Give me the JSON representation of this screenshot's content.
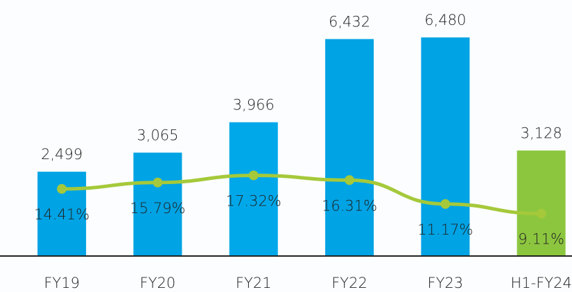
{
  "chart_data": {
    "type": "bar_line",
    "categories": [
      "FY19",
      "FY20",
      "FY21",
      "FY22",
      "FY23",
      "H1-FY24"
    ],
    "series": [
      {
        "values": [
          2499,
          3065,
          3966,
          6432,
          6480,
          3128
        ],
        "value_labels": [
          "2,499",
          "3,065",
          "3,966",
          "6,432",
          "6,480",
          "3,128"
        ],
        "colors": [
          "#00a3e4",
          "#00a3e4",
          "#00a8ea",
          "#00a3e4",
          "#00a3e4",
          "#8cc63f"
        ]
      },
      {
        "axis": "y2",
        "color": "#a5c93a",
        "values": [
          14.41,
          15.79,
          17.32,
          16.31,
          11.17,
          9.11
        ],
        "value_labels": [
          "14.41%",
          "15.79%",
          "17.32%",
          "16.31%",
          "11.17%",
          "9.11%"
        ]
      }
    ],
    "ylim": [
      0,
      7590
    ],
    "y2lim": [
      0,
      55
    ]
  }
}
